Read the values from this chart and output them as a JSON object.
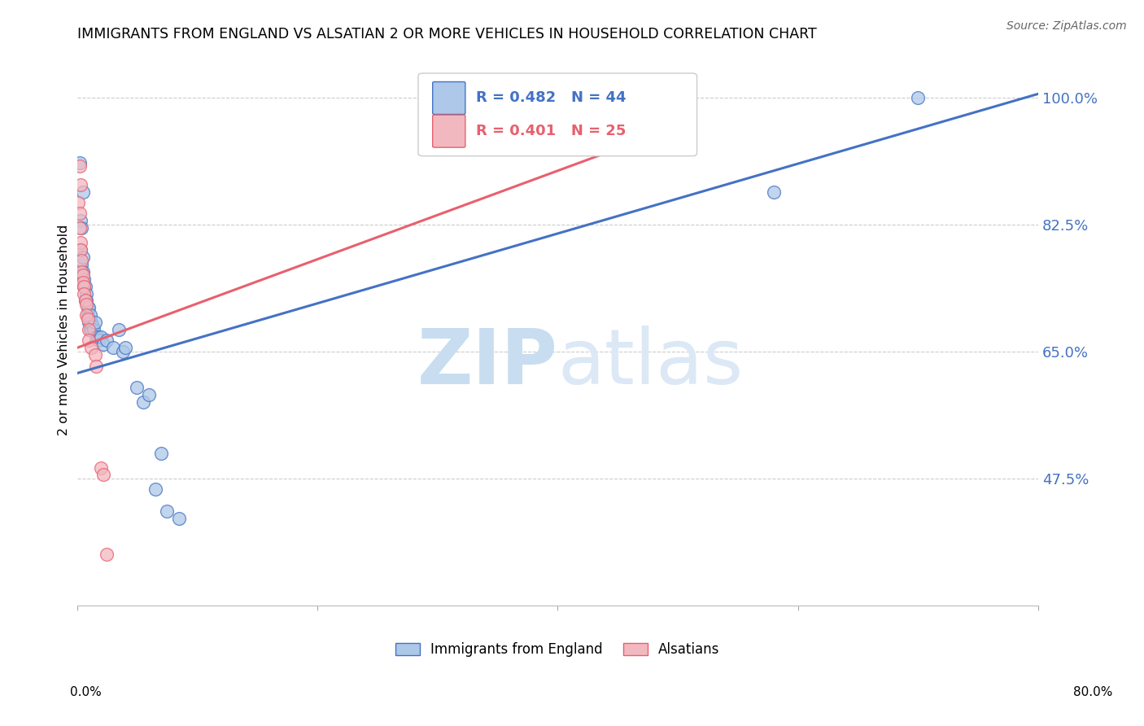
{
  "title": "IMMIGRANTS FROM ENGLAND VS ALSATIAN 2 OR MORE VEHICLES IN HOUSEHOLD CORRELATION CHART",
  "source": "Source: ZipAtlas.com",
  "ylabel": "2 or more Vehicles in Household",
  "ytick_labels": [
    "47.5%",
    "65.0%",
    "82.5%",
    "100.0%"
  ],
  "ytick_values": [
    0.475,
    0.65,
    0.825,
    1.0
  ],
  "xmin": 0.0,
  "xmax": 0.8,
  "ymin": 0.3,
  "ymax": 1.06,
  "watermark_zip": "ZIP",
  "watermark_atlas": "atlas",
  "legend_blue_label": "Immigrants from England",
  "legend_pink_label": "Alsatians",
  "blue_R": 0.482,
  "blue_N": 44,
  "pink_R": 0.401,
  "pink_N": 25,
  "blue_color": "#adc8e8",
  "pink_color": "#f2b8c0",
  "blue_line_color": "#4472c4",
  "pink_line_color": "#e8606e",
  "blue_line": [
    [
      0.0,
      0.62
    ],
    [
      0.8,
      1.005
    ]
  ],
  "pink_line": [
    [
      0.0,
      0.655
    ],
    [
      0.5,
      0.96
    ]
  ],
  "blue_scatter": [
    [
      0.002,
      0.91
    ],
    [
      0.005,
      0.87
    ],
    [
      0.003,
      0.83
    ],
    [
      0.004,
      0.82
    ],
    [
      0.003,
      0.79
    ],
    [
      0.004,
      0.77
    ],
    [
      0.005,
      0.78
    ],
    [
      0.005,
      0.76
    ],
    [
      0.006,
      0.75
    ],
    [
      0.006,
      0.74
    ],
    [
      0.007,
      0.74
    ],
    [
      0.007,
      0.72
    ],
    [
      0.008,
      0.73
    ],
    [
      0.008,
      0.72
    ],
    [
      0.009,
      0.71
    ],
    [
      0.009,
      0.7
    ],
    [
      0.01,
      0.71
    ],
    [
      0.01,
      0.69
    ],
    [
      0.011,
      0.7
    ],
    [
      0.011,
      0.68
    ],
    [
      0.012,
      0.69
    ],
    [
      0.012,
      0.68
    ],
    [
      0.013,
      0.685
    ],
    [
      0.014,
      0.68
    ],
    [
      0.015,
      0.69
    ],
    [
      0.016,
      0.67
    ],
    [
      0.017,
      0.67
    ],
    [
      0.018,
      0.665
    ],
    [
      0.02,
      0.67
    ],
    [
      0.022,
      0.66
    ],
    [
      0.025,
      0.665
    ],
    [
      0.03,
      0.655
    ],
    [
      0.035,
      0.68
    ],
    [
      0.038,
      0.65
    ],
    [
      0.04,
      0.655
    ],
    [
      0.05,
      0.6
    ],
    [
      0.055,
      0.58
    ],
    [
      0.06,
      0.59
    ],
    [
      0.065,
      0.46
    ],
    [
      0.07,
      0.51
    ],
    [
      0.075,
      0.43
    ],
    [
      0.085,
      0.42
    ],
    [
      0.58,
      0.87
    ],
    [
      0.7,
      1.0
    ]
  ],
  "pink_scatter": [
    [
      0.002,
      0.905
    ],
    [
      0.003,
      0.88
    ],
    [
      0.001,
      0.855
    ],
    [
      0.002,
      0.84
    ],
    [
      0.002,
      0.82
    ],
    [
      0.003,
      0.8
    ],
    [
      0.003,
      0.79
    ],
    [
      0.004,
      0.775
    ],
    [
      0.004,
      0.76
    ],
    [
      0.005,
      0.755
    ],
    [
      0.005,
      0.745
    ],
    [
      0.006,
      0.74
    ],
    [
      0.006,
      0.73
    ],
    [
      0.007,
      0.72
    ],
    [
      0.008,
      0.715
    ],
    [
      0.008,
      0.7
    ],
    [
      0.009,
      0.695
    ],
    [
      0.01,
      0.68
    ],
    [
      0.01,
      0.665
    ],
    [
      0.012,
      0.655
    ],
    [
      0.015,
      0.645
    ],
    [
      0.016,
      0.63
    ],
    [
      0.02,
      0.49
    ],
    [
      0.022,
      0.48
    ],
    [
      0.025,
      0.37
    ]
  ]
}
